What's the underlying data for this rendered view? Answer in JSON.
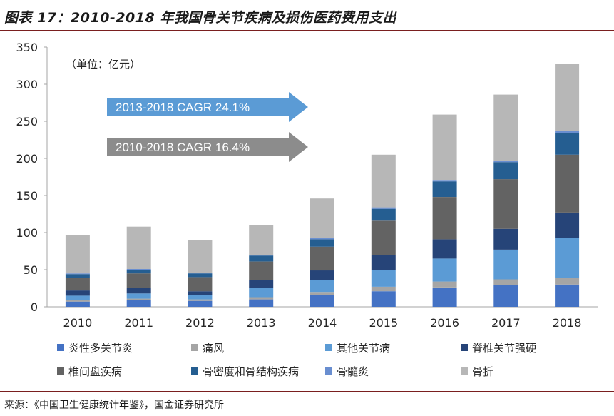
{
  "title": "图表 17：2010-2018 年我国骨关节疾病及损伤医药费用支出",
  "source": "来源：《中国卫生健康统计年鉴》，国金证券研究所",
  "colors": {
    "line": "#4472c4",
    "gout": "#a5a5a5",
    "other_joint": "#5b9bd5",
    "spondylitis": "#264478",
    "disc": "#636363",
    "osteoporosis": "#255e91",
    "osteomyelitis": "#698ed0",
    "fracture": "#b7b7b7",
    "arrow_blue": "#5b9bd5",
    "arrow_gray": "#8c8c8c"
  },
  "chart_data": {
    "type": "bar",
    "stacked": true,
    "unit_note": "（单位：亿元）",
    "categories": [
      "2010",
      "2011",
      "2012",
      "2013",
      "2014",
      "2015",
      "2016",
      "2017",
      "2018"
    ],
    "ylim": [
      0,
      350
    ],
    "yticks": [
      0,
      50,
      100,
      150,
      200,
      250,
      300,
      350
    ],
    "series": [
      {
        "name": "炎性多关节炎",
        "values": [
          7,
          9,
          8,
          10,
          16,
          21,
          26,
          29,
          30
        ]
      },
      {
        "name": "痛风",
        "values": [
          2,
          2,
          2,
          3,
          4,
          6,
          8,
          8,
          9
        ]
      },
      {
        "name": "其他关节病",
        "values": [
          6,
          7,
          6,
          12,
          16,
          22,
          31,
          40,
          54
        ]
      },
      {
        "name": "脊椎关节强硬",
        "values": [
          7,
          7,
          5,
          11,
          13,
          21,
          26,
          28,
          34
        ]
      },
      {
        "name": "椎间盘疾病",
        "values": [
          17,
          20,
          19,
          25,
          32,
          46,
          57,
          67,
          78
        ]
      },
      {
        "name": "骨密度和骨结构疾病",
        "values": [
          5,
          5,
          5,
          8,
          10,
          16,
          21,
          23,
          29
        ]
      },
      {
        "name": "骨髓炎",
        "values": [
          1,
          1,
          1,
          1,
          2,
          2,
          2,
          2,
          3
        ]
      },
      {
        "name": "骨折",
        "values": [
          52,
          57,
          44,
          40,
          53,
          71,
          88,
          89,
          90
        ]
      }
    ],
    "annotations": [
      {
        "text": "2013-2018  CAGR  24.1%",
        "color": "blue"
      },
      {
        "text": "2010-2018  CAGR  16.4%",
        "color": "gray"
      }
    ],
    "legend": "bottom"
  }
}
